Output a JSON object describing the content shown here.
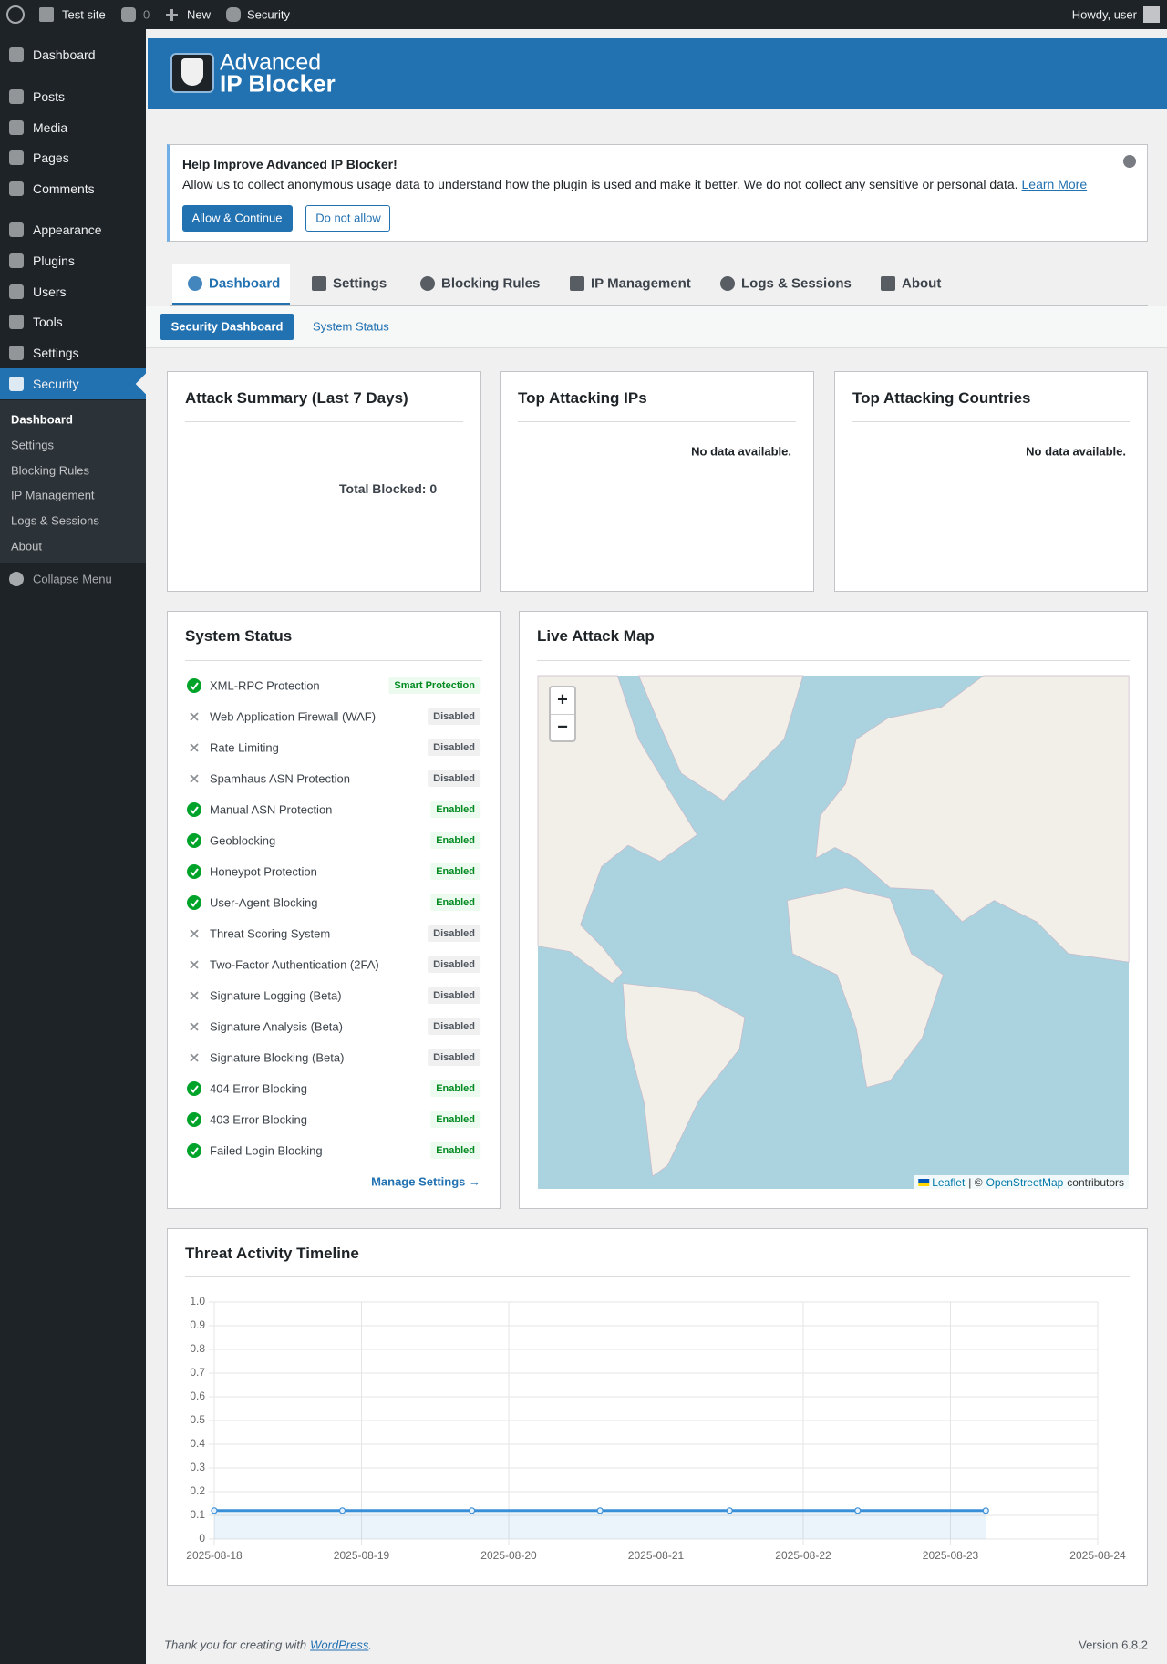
{
  "admin_bar": {
    "site": "Test site",
    "comments": "0",
    "new": "New",
    "security": "Security",
    "greeting": "Howdy, user"
  },
  "menu": {
    "items": [
      "Dashboard",
      "Posts",
      "Media",
      "Pages",
      "Comments",
      "Appearance",
      "Plugins",
      "Users",
      "Tools",
      "Settings",
      "Security"
    ],
    "submenu": [
      "Dashboard",
      "Settings",
      "Blocking Rules",
      "IP Management",
      "Logs & Sessions",
      "About"
    ],
    "collapse": "Collapse Menu"
  },
  "header": {
    "line1": "Advanced",
    "line2": "IP Blocker"
  },
  "notice": {
    "title": "Help Improve Advanced IP Blocker!",
    "text": "Allow us to collect anonymous usage data to understand how the plugin is used and make it better. We do not collect any sensitive or personal data.",
    "link": "Learn More",
    "allow": "Allow & Continue",
    "deny": "Do not allow"
  },
  "tabs": [
    "Dashboard",
    "Settings",
    "Blocking Rules",
    "IP Management",
    "Logs & Sessions",
    "About"
  ],
  "subtabs": [
    "Security Dashboard",
    "System Status"
  ],
  "cards": {
    "attack_summary": {
      "title": "Attack Summary (Last 7 Days)",
      "total_label": "Total Blocked:",
      "total": 0
    },
    "top_ips": {
      "title": "Top Attacking IPs",
      "empty": "No data available."
    },
    "top_countries": {
      "title": "Top Attacking Countries",
      "empty": "No data available."
    }
  },
  "system_status": {
    "title": "System Status",
    "items": [
      {
        "name": "XML-RPC Protection",
        "status": "Smart Protection",
        "ok": true
      },
      {
        "name": "Web Application Firewall (WAF)",
        "status": "Disabled",
        "ok": false
      },
      {
        "name": "Rate Limiting",
        "status": "Disabled",
        "ok": false
      },
      {
        "name": "Spamhaus ASN Protection",
        "status": "Disabled",
        "ok": false
      },
      {
        "name": "Manual ASN Protection",
        "status": "Enabled",
        "ok": true
      },
      {
        "name": "Geoblocking",
        "status": "Enabled",
        "ok": true
      },
      {
        "name": "Honeypot Protection",
        "status": "Enabled",
        "ok": true
      },
      {
        "name": "User-Agent Blocking",
        "status": "Enabled",
        "ok": true
      },
      {
        "name": "Threat Scoring System",
        "status": "Disabled",
        "ok": false
      },
      {
        "name": "Two-Factor Authentication (2FA)",
        "status": "Disabled",
        "ok": false
      },
      {
        "name": "Signature Logging (Beta)",
        "status": "Disabled",
        "ok": false
      },
      {
        "name": "Signature Analysis (Beta)",
        "status": "Disabled",
        "ok": false
      },
      {
        "name": "Signature Blocking (Beta)",
        "status": "Disabled",
        "ok": false
      },
      {
        "name": "404 Error Blocking",
        "status": "Enabled",
        "ok": true
      },
      {
        "name": "403 Error Blocking",
        "status": "Enabled",
        "ok": true
      },
      {
        "name": "Failed Login Blocking",
        "status": "Enabled",
        "ok": true
      }
    ],
    "link": "Manage Settings →"
  },
  "map": {
    "title": "Live Attack Map",
    "zoom_in": "+",
    "zoom_out": "−",
    "attribution": [
      "Leaflet",
      "| ©",
      "OpenStreetMap",
      "contributors"
    ]
  },
  "chart_data": {
    "type": "line",
    "title": "Threat Activity Timeline",
    "grid": true,
    "xlim": [
      0,
      6
    ],
    "xticks": [
      {
        "value": 0,
        "label": "2025-08-18"
      },
      {
        "value": 1,
        "label": "2025-08-19"
      },
      {
        "value": 2,
        "label": "2025-08-20"
      },
      {
        "value": 3,
        "label": "2025-08-21"
      },
      {
        "value": 4,
        "label": "2025-08-22"
      },
      {
        "value": 5,
        "label": "2025-08-23"
      },
      {
        "value": 6,
        "label": "2025-08-24"
      }
    ],
    "ylim": [
      0,
      1
    ],
    "yticks": [
      0,
      0.1,
      0.2,
      0.3,
      0.4,
      0.5,
      0.6,
      0.7,
      0.8,
      0.9,
      {
        "value": 1,
        "label": "1.0"
      }
    ],
    "x": [
      0,
      0.87,
      1.75,
      2.62,
      3.5,
      4.37,
      5.24
    ],
    "series": [
      {
        "color": "#3a8fd9",
        "values": [
          0.12,
          0.12,
          0.12,
          0.12,
          0.12,
          0.12,
          0.12
        ]
      }
    ]
  },
  "footer": {
    "text": "Thank you for creating with",
    "link": "WordPress",
    "period": ".",
    "version": "Version 6.8.2"
  }
}
